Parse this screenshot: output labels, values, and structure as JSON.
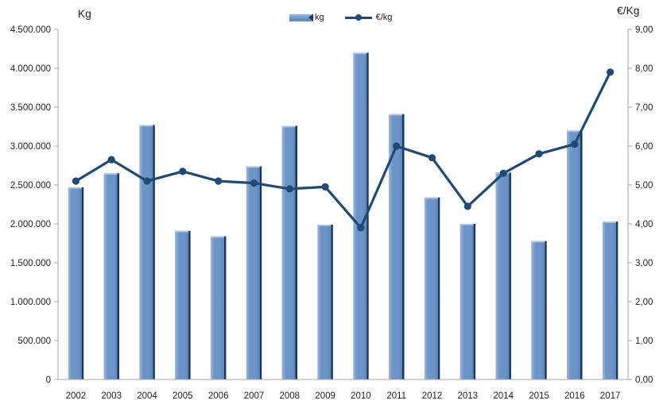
{
  "colors": {
    "bar_fill": "#6c94c6",
    "bar_fill_dark": "#5c85ba",
    "bar_highlight": "#9cb8de",
    "bar_top_bevel": "#aac4e2",
    "bar_shadow": "#17375e",
    "line_color": "#1f4a73",
    "axis_color": "#a6a6a6",
    "text_color": "#1f1f1f"
  },
  "chart_data": {
    "type": "bar",
    "subtype": "bar+line dual axis",
    "grid": false,
    "categories": [
      "2002",
      "2003",
      "2004",
      "2005",
      "2006",
      "2007",
      "2008",
      "2009",
      "2010",
      "2011",
      "2012",
      "2013",
      "2014",
      "2015",
      "2016",
      "2017"
    ],
    "series": [
      {
        "name": "kg",
        "kind": "bar",
        "axis": "left",
        "values": [
          2470000,
          2650000,
          3270000,
          1910000,
          1840000,
          2740000,
          3260000,
          1990000,
          4200000,
          3410000,
          2340000,
          2000000,
          2660000,
          1780000,
          3200000,
          2030000
        ]
      },
      {
        "name": "€/kg",
        "kind": "line",
        "axis": "right",
        "values": [
          5.1,
          5.65,
          5.1,
          5.35,
          5.1,
          5.05,
          4.9,
          4.95,
          3.9,
          6.0,
          5.7,
          4.45,
          5.3,
          5.8,
          6.05,
          7.9
        ]
      }
    ],
    "left_axis": {
      "title": "Kg",
      "min": 0,
      "max": 4500000,
      "step": 500000,
      "tick_labels": [
        "0",
        "500.000",
        "1.000.000",
        "1.500.000",
        "2.000.000",
        "2.500.000",
        "3.000.000",
        "3.500.000",
        "4.000.000",
        "4.500.000"
      ]
    },
    "right_axis": {
      "title": "€/Kg",
      "min": 0,
      "max": 9,
      "step": 1,
      "tick_labels": [
        "0,00",
        "1,00",
        "2,00",
        "3,00",
        "4,00",
        "5,00",
        "6,00",
        "7,00",
        "8,00",
        "9,00"
      ]
    },
    "legend": {
      "position": "top-center",
      "items": [
        {
          "label": "kg",
          "marker": "bar"
        },
        {
          "label": "€/kg",
          "marker": "line"
        }
      ]
    }
  }
}
